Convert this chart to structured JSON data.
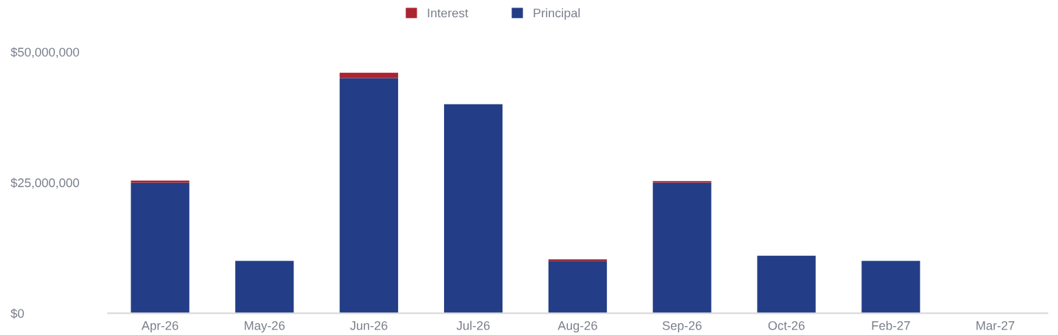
{
  "chart_data": {
    "type": "bar",
    "stacked": true,
    "categories": [
      "Apr-26",
      "May-26",
      "Jun-26",
      "Jul-26",
      "Aug-26",
      "Sep-26",
      "Oct-26",
      "Feb-27",
      "Mar-27"
    ],
    "series": [
      {
        "name": "Principal",
        "color": "#233e86",
        "values": [
          25000000,
          10000000,
          45000000,
          40000000,
          10000000,
          25000000,
          11000000,
          10000000,
          0
        ]
      },
      {
        "name": "Interest",
        "color": "#ac2430",
        "values": [
          400000,
          0,
          1000000,
          0,
          300000,
          300000,
          0,
          0,
          0
        ]
      }
    ],
    "ylim": [
      0,
      50000000
    ],
    "yticks": [
      {
        "value": 0,
        "label": "$0"
      },
      {
        "value": 25000000,
        "label": "$25,000,000"
      },
      {
        "value": 50000000,
        "label": "$50,000,000"
      }
    ],
    "grid": false,
    "legend": "top"
  }
}
